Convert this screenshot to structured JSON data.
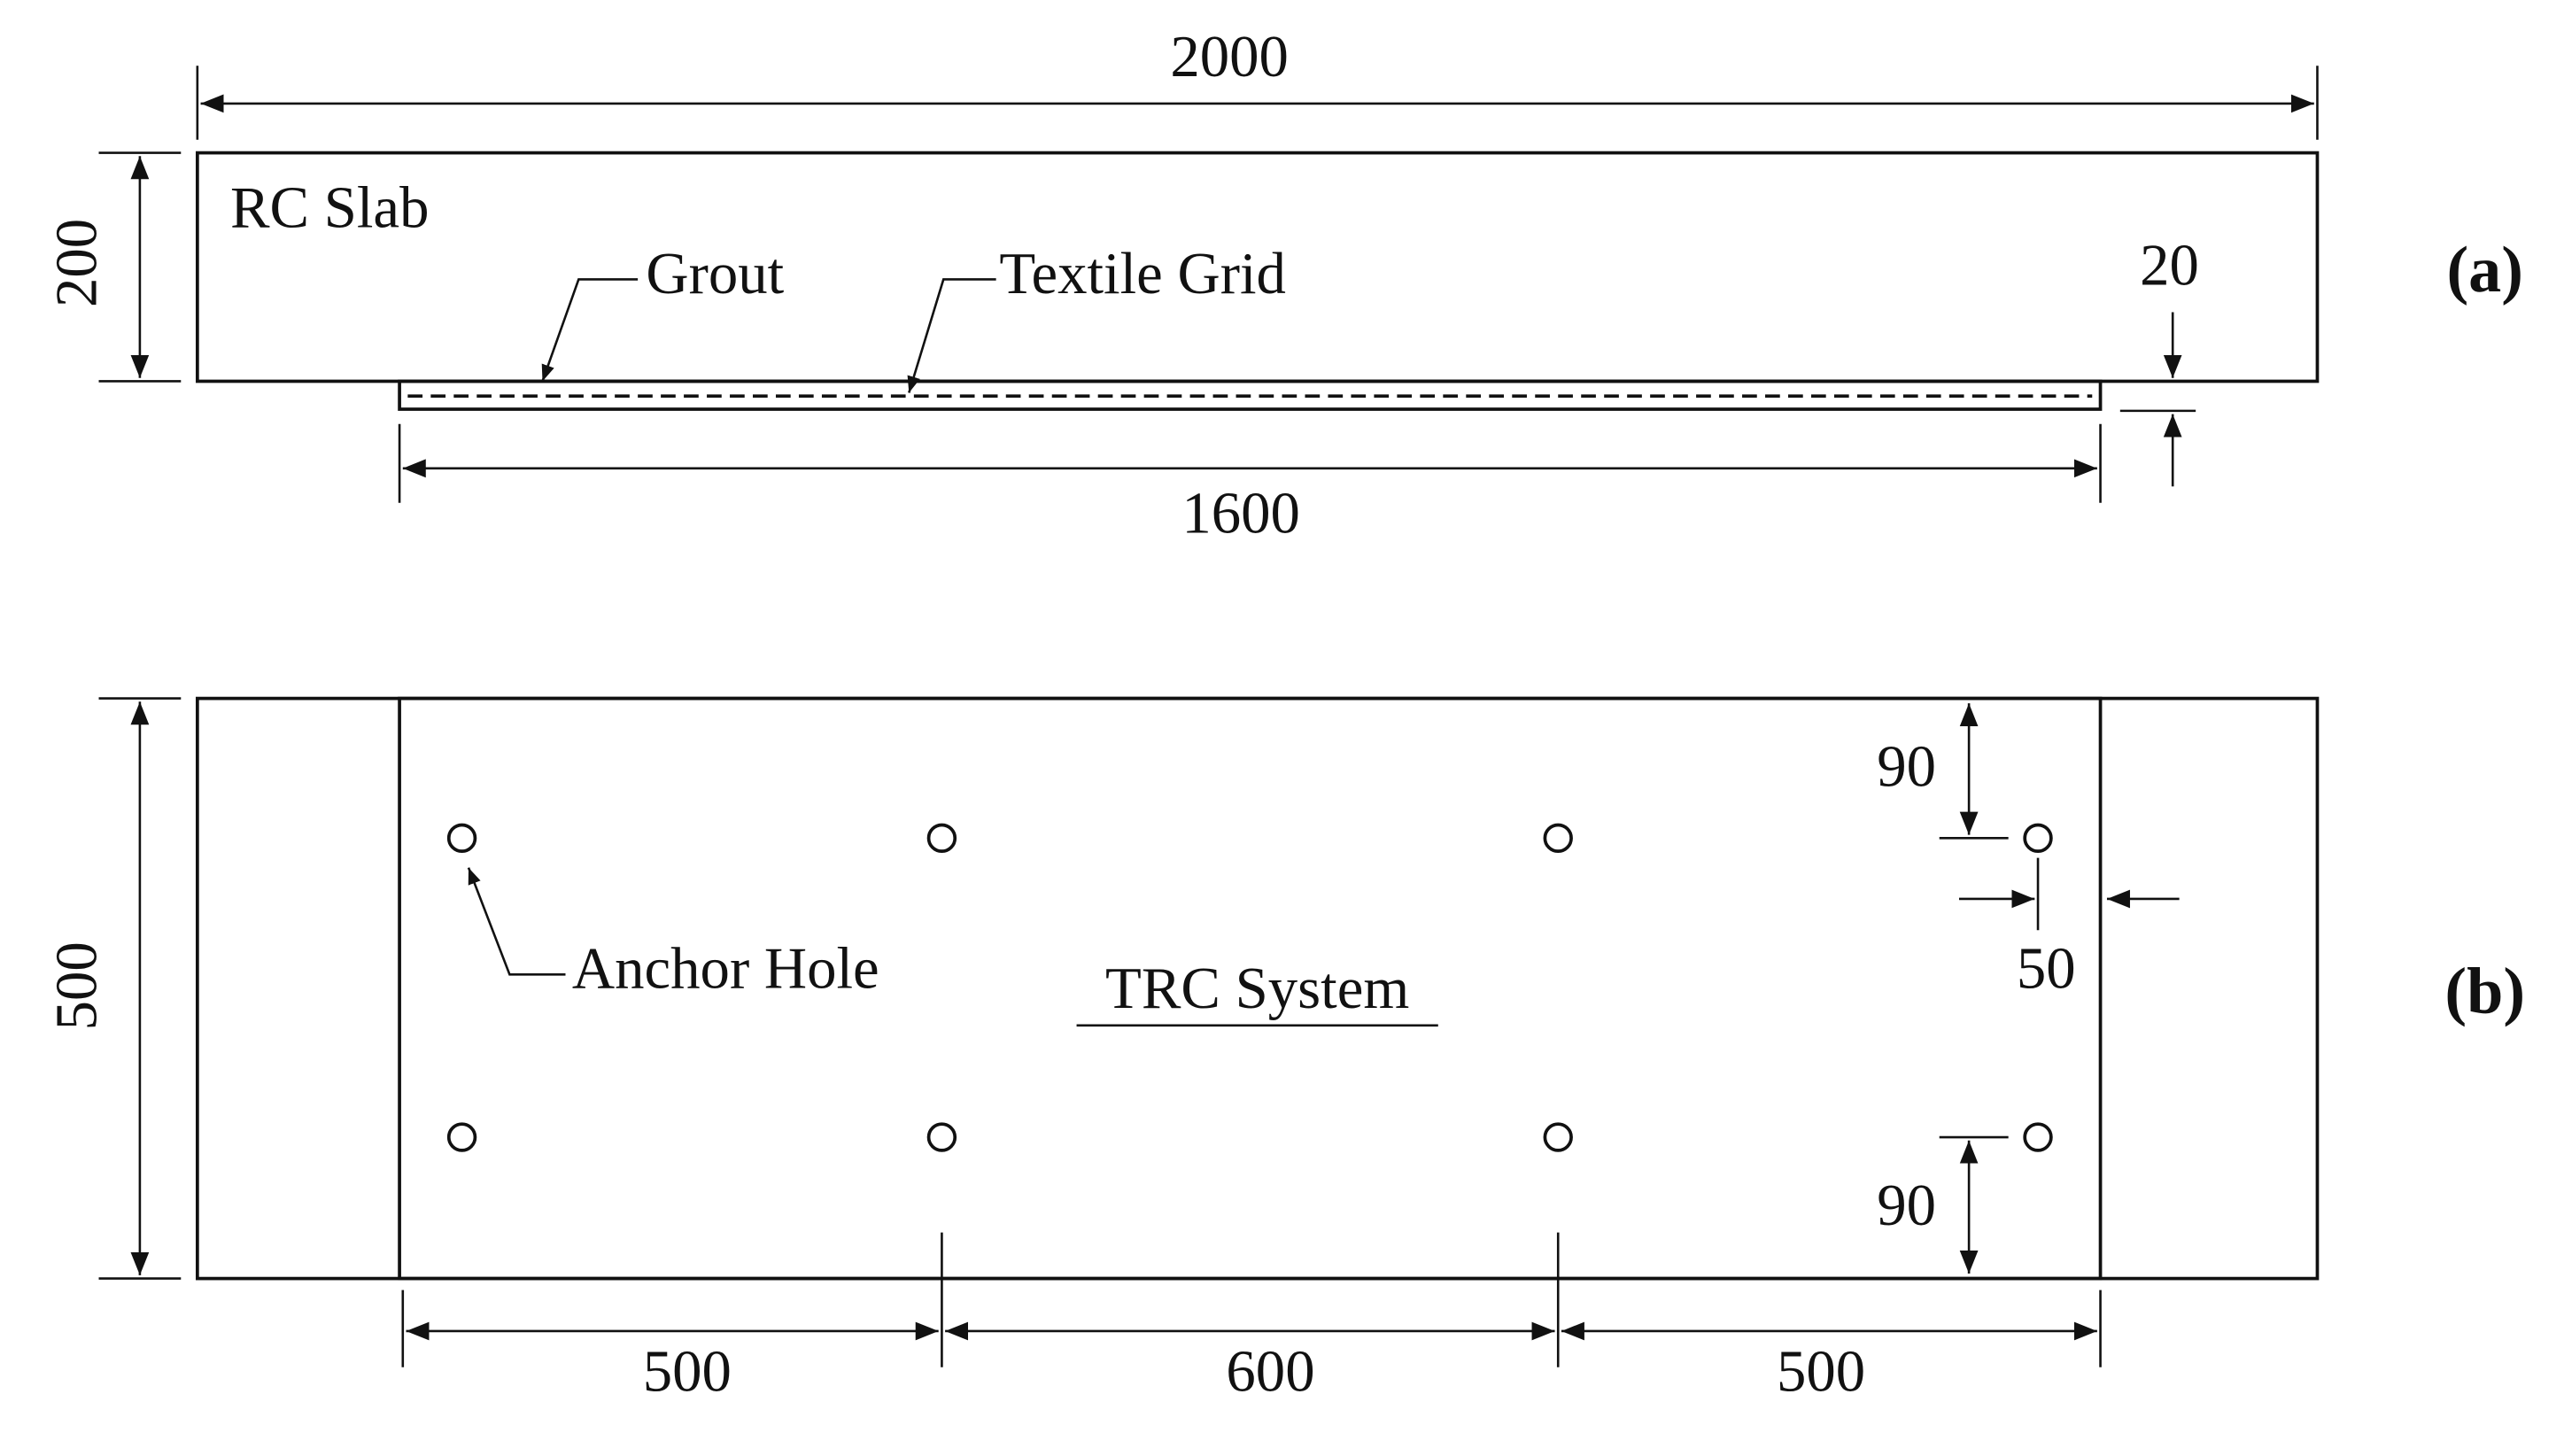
{
  "panel_a": {
    "label": "(a)",
    "slab_label": "RC Slab",
    "grout_label": "Grout",
    "grid_label": "Textile Grid",
    "length": "2000",
    "height": "200",
    "overlay_thickness": "20",
    "overlay_length": "1600"
  },
  "panel_b": {
    "label": "(b)",
    "width": "500",
    "anchor_label": "Anchor Hole",
    "system_label": "TRC System",
    "edge_top": "90",
    "edge_bottom": "90",
    "edge_side": "50",
    "spacing_left": "500",
    "spacing_middle": "600",
    "spacing_right": "500"
  }
}
